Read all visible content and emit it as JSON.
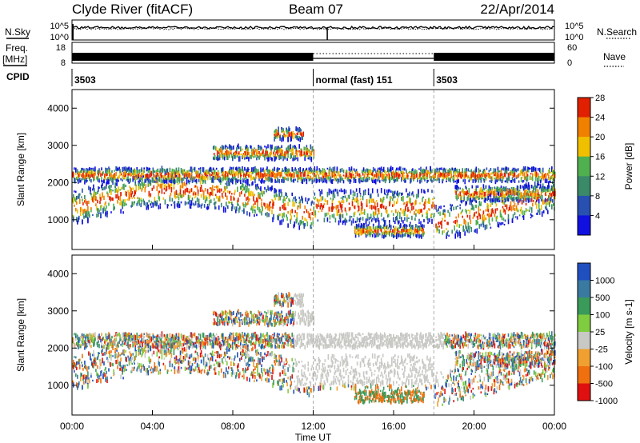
{
  "header": {
    "site": "Clyde River (fitACF)",
    "beam": "Beam 07",
    "date": "22/Apr/2014"
  },
  "strip_labels": {
    "nsky": "N.Sky",
    "nsearch": "N.Search",
    "freq": "Freq.",
    "freq_unit": "[MHz]",
    "nave": "Nave",
    "cpid": "CPID"
  },
  "strip_ticks": {
    "noise_top": "10^5",
    "noise_bottom": "10^0",
    "freq_top": "18",
    "freq_bottom": "8",
    "nave_top": "60",
    "nave_bottom": "0"
  },
  "cpid_segments": [
    {
      "start_hour": 0,
      "end_hour": 12,
      "label": "3503"
    },
    {
      "start_hour": 12,
      "end_hour": 18,
      "label": "normal (fast) 151"
    },
    {
      "start_hour": 18,
      "end_hour": 24,
      "label": "3503"
    }
  ],
  "chart_data": [
    {
      "type": "heatmap",
      "variable": "power",
      "ylabel": "Slant Range [km]",
      "xlim": [
        0,
        24
      ],
      "ylim": [
        200,
        4500
      ],
      "yticks": [
        "1000",
        "2000",
        "3000",
        "4000"
      ],
      "colorbar_label": "Power [dB]",
      "colorbar_ticks": [
        "4",
        "8",
        "12",
        "16",
        "20",
        "24",
        "28"
      ],
      "colorbar_colors": [
        "#1010e0",
        "#2850b0",
        "#3a8a6a",
        "#50b050",
        "#f0c000",
        "#f08000",
        "#e02000"
      ]
    },
    {
      "type": "heatmap",
      "variable": "velocity",
      "xlabel": "Time UT",
      "ylabel": "Slant Range [km]",
      "xlim": [
        0,
        24
      ],
      "ylim": [
        200,
        4500
      ],
      "xticks": [
        "00:00",
        "04:00",
        "08:00",
        "12:00",
        "16:00",
        "20:00",
        "00:00"
      ],
      "yticks": [
        "1000",
        "2000",
        "3000",
        "4000"
      ],
      "colorbar_label": "Velocity [m s-1]",
      "colorbar_ticks": [
        "1000",
        "500",
        "100",
        "25",
        "-25",
        "-100",
        "-500",
        "-1000"
      ],
      "colorbar_colors": [
        "#2050c0",
        "#3a7aa0",
        "#3a9a5a",
        "#80cc40",
        "#c8c8c4",
        "#f0a030",
        "#f07010",
        "#e01010"
      ]
    }
  ]
}
